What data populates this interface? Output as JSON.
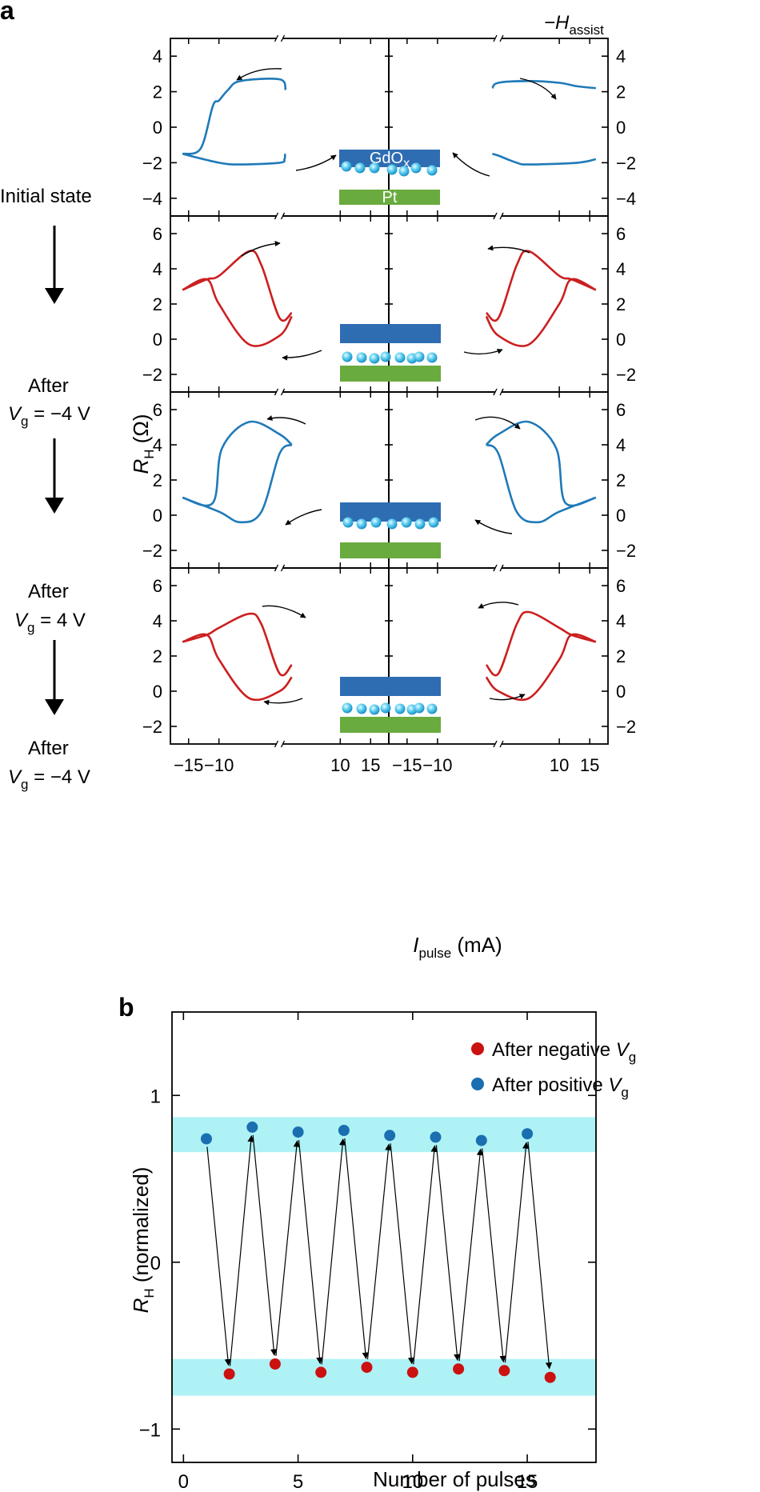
{
  "panel_a": {
    "label": "a",
    "field_label": "−H",
    "field_sub": "assist",
    "y_label": "R",
    "y_label_sub": "H",
    "y_label_unit": " (Ω)",
    "x_label": "I",
    "x_label_sub": "pulse",
    "x_label_unit": " (mA)",
    "layer_top": "GdO",
    "layer_top_sub": "x",
    "layer_bottom": "Pt",
    "states": [
      {
        "line1": "Initial state",
        "line2": "",
        "line2_sub": "",
        "line2_rest": ""
      },
      {
        "line1": "After",
        "line2": "V",
        "line2_sub": "g",
        "line2_rest": " = −4 V"
      },
      {
        "line1": "After",
        "line2": "V",
        "line2_sub": "g",
        "line2_rest": " = 4 V"
      },
      {
        "line1": "After",
        "line2": "V",
        "line2_sub": "g",
        "line2_rest": " = −4 V"
      }
    ],
    "x_ticks_left": [
      "−15",
      "−10",
      "10",
      "15"
    ],
    "x_ticks_right": [
      "−15",
      "−10",
      "10",
      "15"
    ]
  },
  "panel_b": {
    "label": "b",
    "y_label": "R",
    "y_label_sub": "H",
    "y_label_unit": " (normalized)",
    "x_label": "Number of pulses",
    "legend_negative": "After negative ",
    "legend_positive": "After positive  ",
    "legend_v": "V",
    "legend_sub": "g"
  },
  "chart_data": [
    {
      "type": "line",
      "panel": "a-1 Initial state",
      "xlabel": "Ipulse (mA)",
      "ylabel": "RH (Ω)",
      "ylim": [
        -5,
        5
      ],
      "yticks": [
        -4,
        -2,
        0,
        2,
        4
      ],
      "color": "#1f7ab8",
      "x_axis_break": true,
      "loops": {
        "left_upper": {
          "x": [
            -16,
            -13,
            -11,
            -10,
            -8.5,
            -6.5,
            0,
            1
          ],
          "y": [
            -1.5,
            -1.2,
            1.2,
            1.5,
            2.1,
            2.6,
            2.7,
            2.1
          ]
        },
        "left_lower": {
          "x": [
            -16,
            -10,
            -6.5,
            0,
            0.8,
            0.9
          ],
          "y": [
            -1.5,
            -2.0,
            -2.1,
            -2.0,
            -1.8,
            -1.5
          ]
        },
        "right_upper": {
          "x": [
            -1,
            0,
            5,
            10,
            13,
            16
          ],
          "y": [
            2.2,
            2.5,
            2.6,
            2.5,
            2.3,
            2.2
          ]
        },
        "right_lower": {
          "x": [
            -1,
            0,
            3,
            5,
            13,
            16
          ],
          "y": [
            -1.5,
            -1.6,
            -2.0,
            -2.1,
            -2.0,
            -1.8
          ]
        }
      }
    },
    {
      "type": "line",
      "panel": "a-2 After Vg = -4 V",
      "ylim": [
        -3,
        7
      ],
      "yticks": [
        -2,
        0,
        2,
        4,
        6
      ],
      "color": "#cc1f1f",
      "loops": {
        "left_upper": {
          "x": [
            -16,
            -12,
            -10,
            -5,
            -3,
            0,
            2
          ],
          "y": [
            2.8,
            3.4,
            3.6,
            5.0,
            4.2,
            1.2,
            1.5
          ]
        },
        "left_lower": {
          "x": [
            -16,
            -12,
            -10,
            -5,
            0,
            2
          ],
          "y": [
            2.8,
            3.4,
            2.0,
            -0.3,
            0.2,
            1.3
          ]
        },
        "right_upper": {
          "x": [
            -2,
            0,
            3,
            5,
            10,
            12,
            16
          ],
          "y": [
            1.5,
            1.2,
            4.2,
            5.0,
            3.6,
            3.4,
            2.8
          ]
        },
        "right_lower": {
          "x": [
            -2,
            0,
            5,
            10,
            12,
            16
          ],
          "y": [
            1.3,
            0.2,
            -0.3,
            2.0,
            3.4,
            2.8
          ]
        }
      }
    },
    {
      "type": "line",
      "panel": "a-3 After Vg = 4 V",
      "ylim": [
        -3,
        7
      ],
      "yticks": [
        -2,
        0,
        2,
        4,
        6
      ],
      "color": "#1f7ab8",
      "loops": {
        "left_upper": {
          "x": [
            -16,
            -11,
            -9.5,
            -5,
            0,
            2
          ],
          "y": [
            1.0,
            0.7,
            3.8,
            5.3,
            4.6,
            4.0
          ]
        },
        "left_lower": {
          "x": [
            -16,
            -10,
            -6.5,
            -3,
            0,
            2
          ],
          "y": [
            1.0,
            0.2,
            -0.4,
            0.2,
            3.5,
            4.0
          ]
        },
        "right_upper": {
          "x": [
            -2,
            0,
            5,
            9.5,
            11,
            16
          ],
          "y": [
            4.0,
            4.6,
            5.3,
            3.8,
            0.7,
            1.0
          ]
        },
        "right_lower": {
          "x": [
            -2,
            0,
            3,
            6.5,
            10,
            16
          ],
          "y": [
            4.0,
            3.5,
            0.2,
            -0.4,
            0.2,
            1.0
          ]
        }
      }
    },
    {
      "type": "line",
      "panel": "a-4 After Vg = -4 V",
      "ylim": [
        -3,
        7
      ],
      "yticks": [
        -2,
        0,
        2,
        4,
        6
      ],
      "color": "#cc1f1f",
      "loops": {
        "left_upper": {
          "x": [
            -16,
            -12,
            -10,
            -5,
            -3,
            0,
            2
          ],
          "y": [
            2.8,
            3.2,
            3.6,
            4.4,
            3.8,
            1.0,
            1.5
          ]
        },
        "left_lower": {
          "x": [
            -16,
            -12,
            -10,
            -5,
            0,
            2
          ],
          "y": [
            2.8,
            3.2,
            1.8,
            -0.4,
            0.0,
            0.8
          ]
        },
        "right_upper": {
          "x": [
            -2,
            0,
            3,
            5,
            10,
            12,
            16
          ],
          "y": [
            1.5,
            1.0,
            3.8,
            4.5,
            3.6,
            3.2,
            2.8
          ]
        },
        "right_lower": {
          "x": [
            -2,
            0,
            5,
            10,
            12,
            16
          ],
          "y": [
            0.8,
            0.0,
            -0.4,
            1.8,
            3.2,
            2.8
          ]
        }
      }
    },
    {
      "type": "scatter",
      "panel": "b",
      "xlabel": "Number of pulses",
      "ylabel": "RH (normalized)",
      "xlim": [
        -0.5,
        18
      ],
      "ylim": [
        -1.2,
        1.5
      ],
      "xticks": [
        0,
        5,
        10,
        15
      ],
      "yticks": [
        -1,
        0,
        1
      ],
      "bands": [
        {
          "from": 0.66,
          "to": 0.87
        },
        {
          "from": -0.8,
          "to": -0.58
        }
      ],
      "legend": "top-right",
      "series": [
        {
          "name": "After negative Vg",
          "color": "#cc1111",
          "x": [
            2,
            4,
            6,
            8,
            10,
            12,
            14,
            16
          ],
          "y": [
            -0.67,
            -0.61,
            -0.66,
            -0.63,
            -0.66,
            -0.64,
            -0.65,
            -0.69
          ]
        },
        {
          "name": "After positive Vg",
          "color": "#1a6fb0",
          "x": [
            1,
            3,
            5,
            7,
            9,
            11,
            13,
            15
          ],
          "y": [
            0.74,
            0.81,
            0.78,
            0.79,
            0.76,
            0.75,
            0.73,
            0.77
          ]
        }
      ],
      "arrows": "each point connected to the next pulse in order 1 → 2 → … → 16"
    }
  ],
  "colors": {
    "blue_curve": "#1f7ab8",
    "red_curve": "#cc1f1f",
    "gdox_layer": "#2f6db3",
    "pt_layer": "#6aab3f",
    "ion": "#4fc3ea",
    "band": "#aef2f6"
  }
}
